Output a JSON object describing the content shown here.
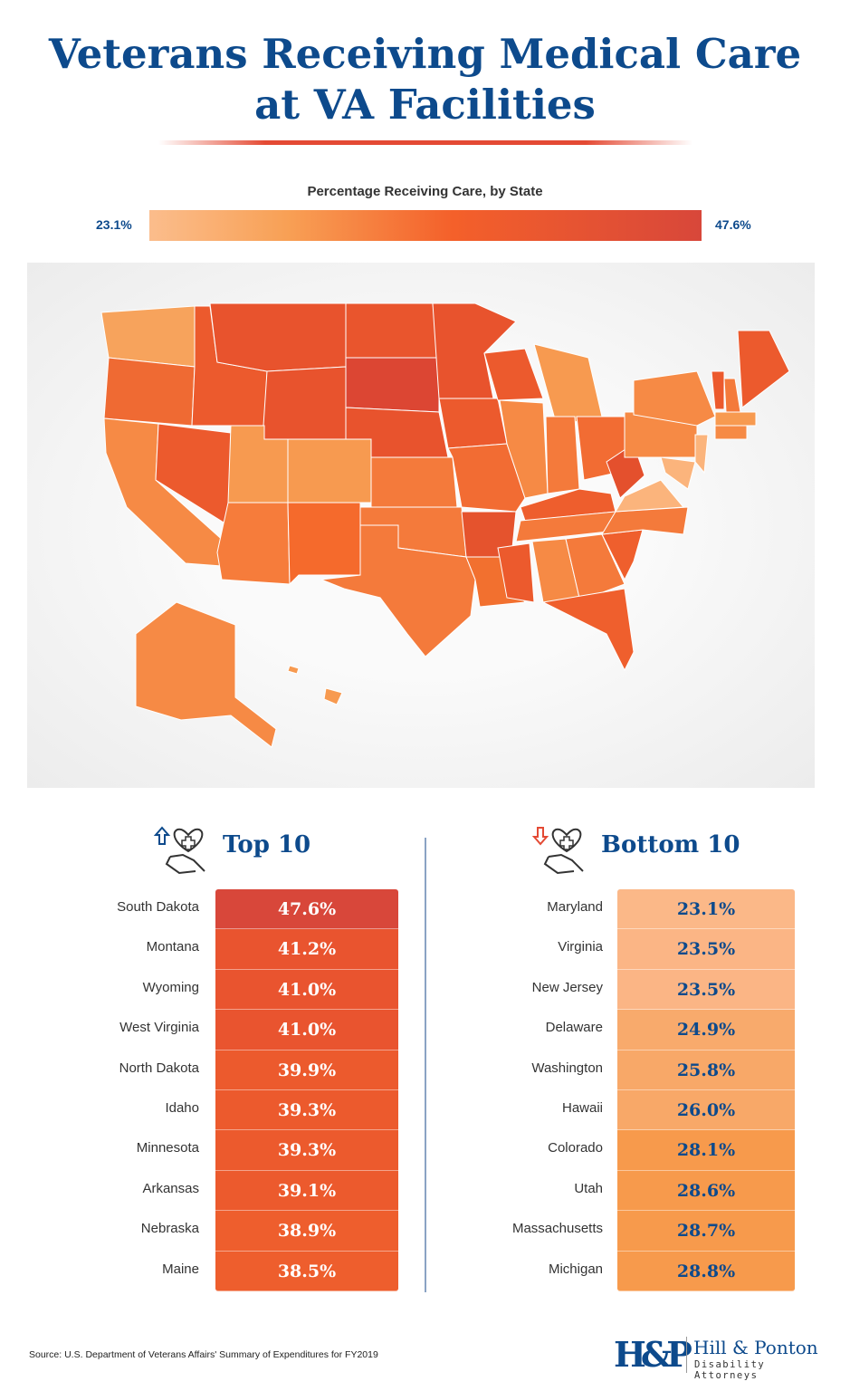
{
  "title_line1": "Veterans Receiving Medical Care",
  "title_line2": "at VA Facilities",
  "colors": {
    "title": "#0d4a8c",
    "scale_low": "#fbbd8c",
    "scale_mid": "#f4602a",
    "scale_high": "#d8473a",
    "arrow_up": "#0d4a8c",
    "arrow_down": "#e44a34"
  },
  "chart_data": [
    {
      "type": "heatmap",
      "map": "United States choropleth by state",
      "legend_title": "Percentage Receiving Care, by State",
      "scale_min_label": "23.1%",
      "scale_max_label": "47.6%",
      "scale_range": [
        23.1,
        47.6
      ]
    },
    {
      "type": "table",
      "title": "Top 10",
      "icon": "heart-hand-arrow-up-icon",
      "rows": [
        {
          "state": "South Dakota",
          "value": "47.6%"
        },
        {
          "state": "Montana",
          "value": "41.2%"
        },
        {
          "state": "Wyoming",
          "value": "41.0%"
        },
        {
          "state": "West Virginia",
          "value": "41.0%"
        },
        {
          "state": "North Dakota",
          "value": "39.9%"
        },
        {
          "state": "Idaho",
          "value": "39.3%"
        },
        {
          "state": "Minnesota",
          "value": "39.3%"
        },
        {
          "state": "Arkansas",
          "value": "39.1%"
        },
        {
          "state": "Nebraska",
          "value": "38.9%"
        },
        {
          "state": "Maine",
          "value": "38.5%"
        }
      ]
    },
    {
      "type": "table",
      "title": "Bottom 10",
      "icon": "heart-hand-arrow-down-icon",
      "rows": [
        {
          "state": "Maryland",
          "value": "23.1%"
        },
        {
          "state": "Virginia",
          "value": "23.5%"
        },
        {
          "state": "New Jersey",
          "value": "23.5%"
        },
        {
          "state": "Delaware",
          "value": "24.9%"
        },
        {
          "state": "Washington",
          "value": "25.8%"
        },
        {
          "state": "Hawaii",
          "value": "26.0%"
        },
        {
          "state": "Colorado",
          "value": "28.1%"
        },
        {
          "state": "Utah",
          "value": "28.6%"
        },
        {
          "state": "Massachusetts",
          "value": "28.7%"
        },
        {
          "state": "Michigan",
          "value": "28.8%"
        }
      ]
    }
  ],
  "source": "Source: U.S. Department of Veterans Affairs' Summary of Expenditures for FY2019",
  "logo": {
    "mark": "H&P",
    "name": "Hill & Ponton",
    "tagline": "Disability Attorneys"
  }
}
